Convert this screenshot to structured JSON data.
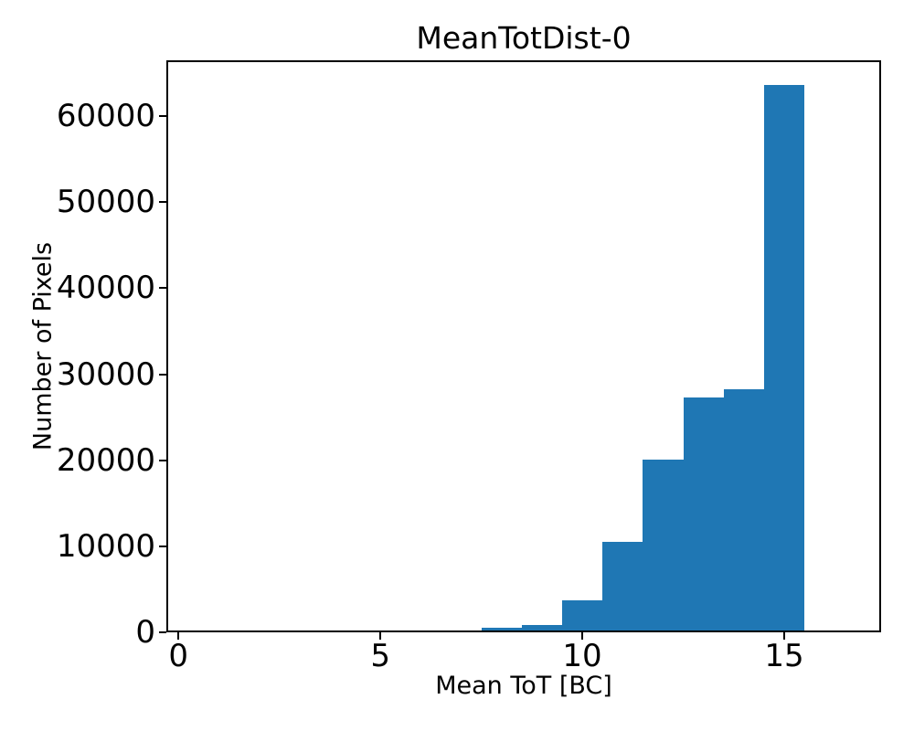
{
  "chart_data": {
    "type": "bar",
    "subtype": "histogram",
    "title": "MeanTotDist-0",
    "xlabel": "Mean ToT [BC]",
    "ylabel": "Number of Pixels",
    "bar_color": "#1f77b4",
    "axis_color": "#000000",
    "background_color": "#ffffff",
    "bin_edges": [
      7.5,
      8.5,
      9.5,
      10.5,
      11.5,
      12.5,
      13.5,
      14.5,
      15.5
    ],
    "counts": [
      280,
      620,
      3480,
      10300,
      19900,
      27100,
      28000,
      63400
    ],
    "xticks": [
      0,
      5,
      10,
      15
    ],
    "yticks": [
      0,
      10000,
      20000,
      30000,
      40000,
      50000,
      60000
    ],
    "xlim": [
      -0.3,
      17.4
    ],
    "ylim": [
      0,
      66500
    ],
    "grid": false,
    "legend": null
  }
}
